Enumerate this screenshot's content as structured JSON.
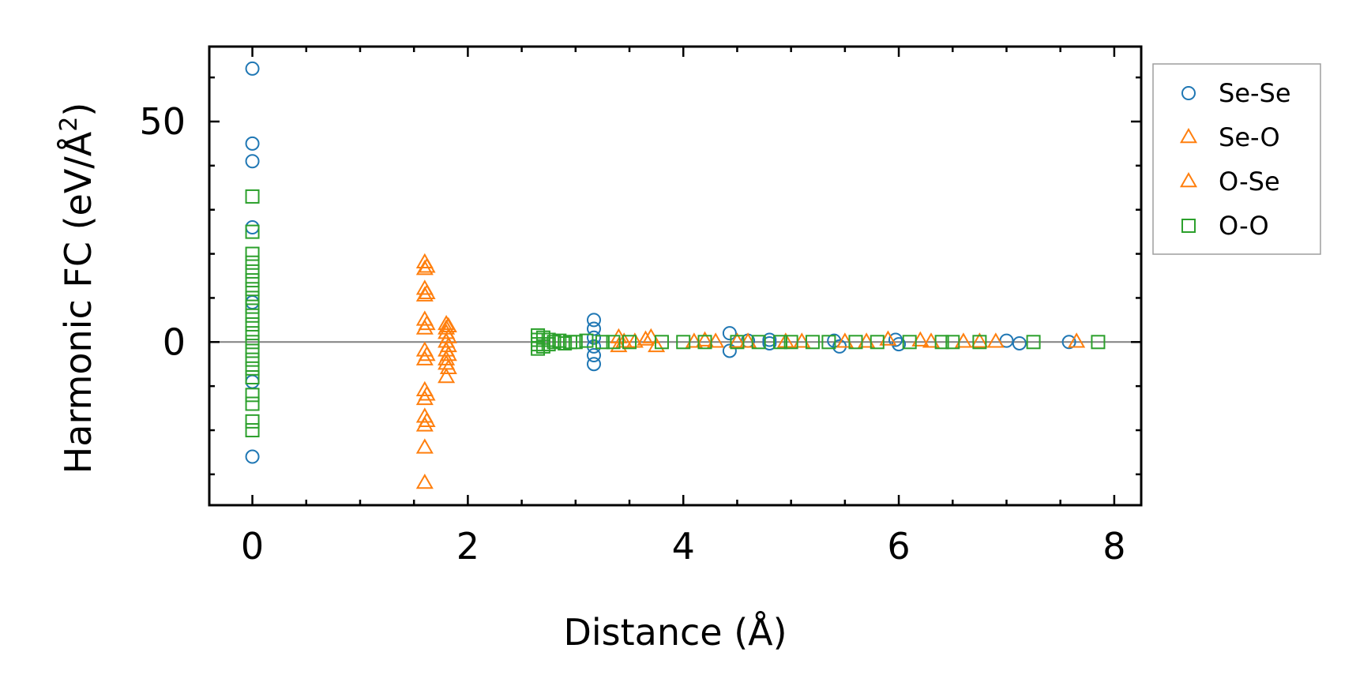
{
  "chart_data": {
    "type": "scatter",
    "title": "",
    "xlabel": "Distance (Å)",
    "ylabel_main": "Harmonic FC (eV/Å",
    "ylabel_sup": "2",
    "ylabel_tail": ")",
    "xlim": [
      -0.4,
      8.25
    ],
    "ylim": [
      -37,
      67
    ],
    "xticks": [
      0,
      2,
      4,
      6,
      8
    ],
    "xtick_labels": [
      "0",
      "2",
      "4",
      "6",
      "8"
    ],
    "yticks": [
      0,
      50
    ],
    "ytick_labels": [
      "0",
      "50"
    ],
    "x_minor_step": 0.5,
    "y_minor_step": 10,
    "zero_line": true,
    "legend_position": "outside-right-top",
    "series": [
      {
        "name": "Se-Se",
        "marker": "circle",
        "color": "#1f77b4",
        "points": [
          [
            0,
            62
          ],
          [
            0,
            45
          ],
          [
            0,
            41
          ],
          [
            0,
            26
          ],
          [
            0,
            9
          ],
          [
            0,
            -9
          ],
          [
            0,
            -26
          ],
          [
            3.17,
            5
          ],
          [
            3.17,
            3
          ],
          [
            3.17,
            1
          ],
          [
            3.17,
            -1
          ],
          [
            3.17,
            -3
          ],
          [
            3.17,
            -5
          ],
          [
            4.43,
            2
          ],
          [
            4.43,
            -2
          ],
          [
            4.6,
            0.3
          ],
          [
            4.8,
            0.5
          ],
          [
            4.8,
            -0.3
          ],
          [
            5.4,
            0.3
          ],
          [
            5.45,
            -1
          ],
          [
            5.97,
            0.5
          ],
          [
            6.0,
            -0.5
          ],
          [
            7.0,
            0.3
          ],
          [
            7.12,
            -0.3
          ],
          [
            7.58,
            0
          ]
        ]
      },
      {
        "name": "Se-O",
        "marker": "triangle",
        "color": "#ff7f0e",
        "points": [
          [
            1.6,
            18
          ],
          [
            1.6,
            16.5
          ],
          [
            1.6,
            12
          ],
          [
            1.6,
            10.5
          ],
          [
            1.6,
            5
          ],
          [
            1.6,
            3
          ],
          [
            1.6,
            -2
          ],
          [
            1.6,
            -4
          ],
          [
            1.6,
            -11
          ],
          [
            1.6,
            -13
          ],
          [
            1.6,
            -17
          ],
          [
            1.6,
            -19
          ],
          [
            1.6,
            -24
          ],
          [
            1.6,
            -32
          ],
          [
            1.8,
            4
          ],
          [
            1.8,
            3
          ],
          [
            1.8,
            2
          ],
          [
            1.8,
            0
          ],
          [
            1.8,
            -2
          ],
          [
            1.8,
            -4
          ],
          [
            1.8,
            -5
          ],
          [
            1.8,
            -8
          ],
          [
            3.4,
            1
          ],
          [
            3.4,
            -1
          ],
          [
            3.55,
            0
          ],
          [
            3.7,
            1
          ],
          [
            3.75,
            -1
          ],
          [
            4.1,
            0
          ],
          [
            4.3,
            0
          ],
          [
            4.5,
            0
          ],
          [
            4.95,
            0
          ],
          [
            5.5,
            0
          ],
          [
            5.9,
            0.5
          ],
          [
            6.3,
            0
          ],
          [
            6.6,
            0
          ],
          [
            6.9,
            0
          ],
          [
            7.65,
            0
          ]
        ]
      },
      {
        "name": "O-Se",
        "marker": "triangle",
        "color": "#ff7f0e",
        "points": [
          [
            1.62,
            17
          ],
          [
            1.62,
            11
          ],
          [
            1.62,
            4
          ],
          [
            1.62,
            -3
          ],
          [
            1.62,
            -12
          ],
          [
            1.62,
            -18
          ],
          [
            1.82,
            3.5
          ],
          [
            1.82,
            1
          ],
          [
            1.82,
            -1
          ],
          [
            1.82,
            -3
          ],
          [
            1.82,
            -6
          ],
          [
            3.45,
            0
          ],
          [
            3.65,
            0.5
          ],
          [
            4.2,
            0.3
          ],
          [
            4.6,
            0
          ],
          [
            5.1,
            0
          ],
          [
            5.7,
            0
          ],
          [
            6.2,
            0.3
          ],
          [
            6.75,
            0
          ]
        ]
      },
      {
        "name": "O-O",
        "marker": "square",
        "color": "#2ca02c",
        "points": [
          [
            0,
            33
          ],
          [
            0,
            25
          ],
          [
            0,
            20
          ],
          [
            0,
            18
          ],
          [
            0,
            16
          ],
          [
            0,
            14
          ],
          [
            0,
            12
          ],
          [
            0,
            10
          ],
          [
            0,
            8
          ],
          [
            0,
            6
          ],
          [
            0,
            4
          ],
          [
            0,
            2
          ],
          [
            0,
            0
          ],
          [
            0,
            -2
          ],
          [
            0,
            -4
          ],
          [
            0,
            -6
          ],
          [
            0,
            -8
          ],
          [
            0,
            -12
          ],
          [
            0,
            -14
          ],
          [
            0,
            -18
          ],
          [
            0,
            -20
          ],
          [
            2.65,
            1.5
          ],
          [
            2.65,
            0.5
          ],
          [
            2.65,
            -0.5
          ],
          [
            2.65,
            -1.5
          ],
          [
            2.7,
            1
          ],
          [
            2.7,
            -1
          ],
          [
            2.75,
            0.5
          ],
          [
            2.75,
            -0.5
          ],
          [
            2.8,
            0
          ],
          [
            2.85,
            0.3
          ],
          [
            2.9,
            -0.3
          ],
          [
            2.95,
            0
          ],
          [
            3.0,
            0
          ],
          [
            3.1,
            0.3
          ],
          [
            3.25,
            0
          ],
          [
            3.35,
            0
          ],
          [
            3.5,
            0
          ],
          [
            3.8,
            0
          ],
          [
            4.0,
            0
          ],
          [
            4.2,
            0
          ],
          [
            4.5,
            0
          ],
          [
            4.7,
            0
          ],
          [
            4.9,
            0
          ],
          [
            5.0,
            0
          ],
          [
            5.2,
            0
          ],
          [
            5.35,
            0
          ],
          [
            5.6,
            0
          ],
          [
            5.8,
            0
          ],
          [
            6.1,
            0
          ],
          [
            6.4,
            0
          ],
          [
            6.5,
            0
          ],
          [
            6.75,
            0
          ],
          [
            7.25,
            0
          ],
          [
            7.85,
            0
          ]
        ]
      }
    ]
  }
}
